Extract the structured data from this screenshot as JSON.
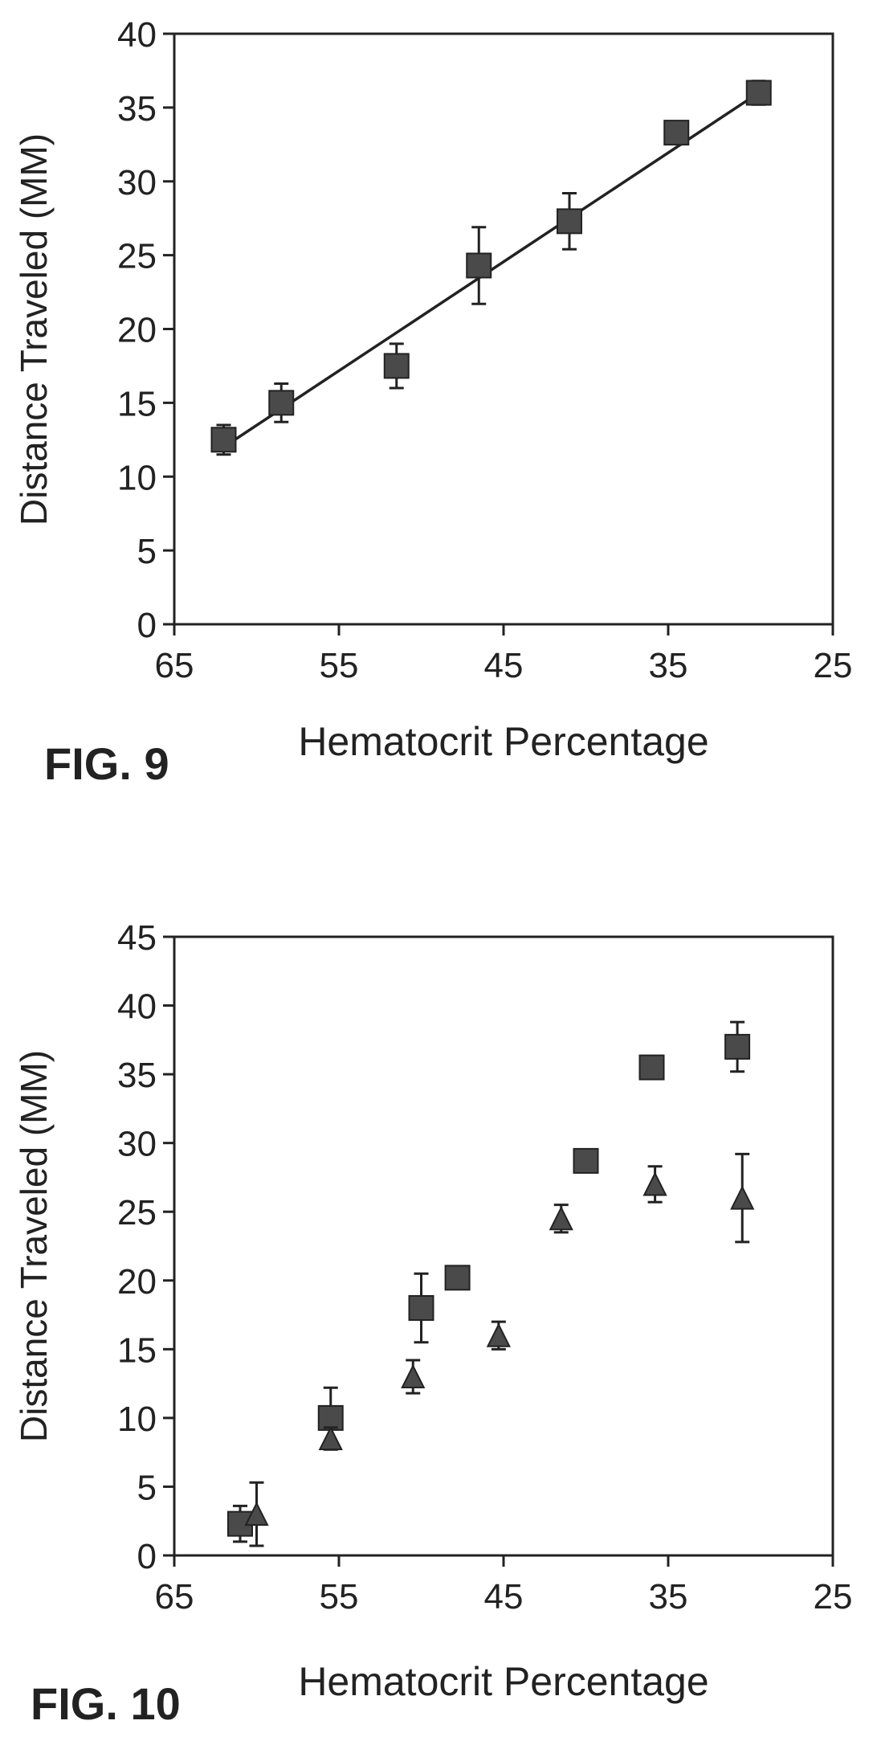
{
  "colors": {
    "ink": "#222222",
    "marker": "#4a4a4a",
    "background": "#ffffff"
  },
  "chart_data": [
    {
      "type": "scatter",
      "figure_label": "FIG. 9",
      "xlabel": "Hematocrit Percentage",
      "ylabel": "Distance Traveled (MM)",
      "xlim": [
        65,
        25
      ],
      "ylim": [
        0,
        40
      ],
      "xticks": [
        65,
        55,
        45,
        35,
        25
      ],
      "yticks": [
        0,
        5,
        10,
        15,
        20,
        25,
        30,
        35,
        40
      ],
      "grid": false,
      "fit_line": {
        "x": [
          62,
          29.5
        ],
        "y": [
          12,
          36
        ]
      },
      "series": [
        {
          "marker": "square",
          "x": [
            62,
            58.5,
            51.5,
            46.5,
            41,
            34.5,
            29.5
          ],
          "y": [
            12.5,
            15,
            17.5,
            24.3,
            27.3,
            33.3,
            36
          ],
          "err": [
            1.0,
            1.3,
            1.5,
            2.6,
            1.9,
            0.6,
            0.8
          ]
        }
      ]
    },
    {
      "type": "scatter",
      "figure_label": "FIG. 10",
      "xlabel": "Hematocrit Percentage",
      "ylabel": "Distance Traveled (MM)",
      "xlim": [
        65,
        25
      ],
      "ylim": [
        0,
        45
      ],
      "xticks": [
        65,
        55,
        45,
        35,
        25
      ],
      "yticks": [
        0,
        5,
        10,
        15,
        20,
        25,
        30,
        35,
        40,
        45
      ],
      "grid": false,
      "series": [
        {
          "marker": "square",
          "x": [
            61,
            55.5,
            50,
            47.8,
            40,
            36,
            30.8
          ],
          "y": [
            2.3,
            10,
            18,
            20.2,
            28.7,
            35.5,
            37
          ],
          "err": [
            1.3,
            2.2,
            2.5,
            0.5,
            0.5,
            0.5,
            1.8
          ]
        },
        {
          "marker": "triangle",
          "x": [
            60,
            55.5,
            50.5,
            45.3,
            41.5,
            35.8,
            30.5
          ],
          "y": [
            3,
            8.5,
            13,
            16,
            24.5,
            27,
            26
          ],
          "err": [
            2.3,
            0.8,
            1.2,
            1.0,
            1.0,
            1.3,
            3.2
          ]
        }
      ]
    }
  ]
}
